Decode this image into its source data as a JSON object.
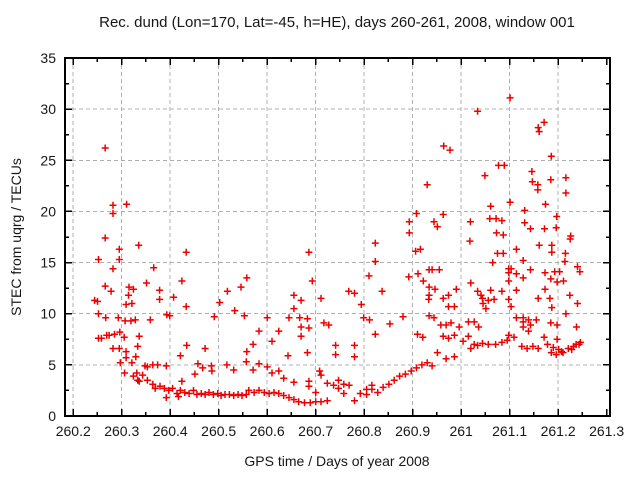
{
  "chart_data": {
    "type": "scatter",
    "title": "Rec. dund (Lon=170, Lat=-45, h=HE), days 260-261, 2008, window 001",
    "xlabel": "GPS time / Days of year 2008",
    "ylabel": "STEC from uqrg / TECUs",
    "xlim": [
      260.183,
      261.307
    ],
    "ylim": [
      0,
      35
    ],
    "x_tick_labels": [
      "260.2",
      "260.3",
      "260.4",
      "260.5",
      "260.6",
      "260.7",
      "260.8",
      "260.9",
      "261",
      "261.1",
      "261.2",
      "261.3"
    ],
    "x_tick_values": [
      260.2,
      260.3,
      260.4,
      260.5,
      260.6,
      260.7,
      260.8,
      260.9,
      261.0,
      261.1,
      261.2,
      261.3
    ],
    "y_tick_labels": [
      "0",
      "5",
      "10",
      "15",
      "20",
      "25",
      "30",
      "35"
    ],
    "y_tick_values": [
      0,
      5,
      10,
      15,
      20,
      25,
      30,
      35
    ],
    "x_minor_step": 0.05,
    "y_minor_step": 2.5,
    "grid": "on",
    "legend": "none",
    "marker": "plus",
    "colors": {
      "marker": "#ee0000",
      "grid": "#b0b0b0",
      "axis": "#000000",
      "text": "#161616",
      "background": "#ffffff"
    },
    "points": [
      [
        260.266,
        26.2
      ],
      [
        260.282,
        20.6
      ],
      [
        260.31,
        20.7
      ],
      [
        260.282,
        19.8
      ],
      [
        260.266,
        17.4
      ],
      [
        260.295,
        16.3
      ],
      [
        260.335,
        16.7
      ],
      [
        260.295,
        15.3
      ],
      [
        260.252,
        15.3
      ],
      [
        260.282,
        14.4
      ],
      [
        260.266,
        12.7
      ],
      [
        260.278,
        12.2
      ],
      [
        260.324,
        12.4
      ],
      [
        260.314,
        11.8
      ],
      [
        260.321,
        11.0
      ],
      [
        260.309,
        10.9
      ],
      [
        260.244,
        11.3
      ],
      [
        260.25,
        11.2
      ],
      [
        260.252,
        10.0
      ],
      [
        260.267,
        9.6
      ],
      [
        260.293,
        9.6
      ],
      [
        260.307,
        9.3
      ],
      [
        260.319,
        9.3
      ],
      [
        260.328,
        9.4
      ],
      [
        260.252,
        7.6
      ],
      [
        260.258,
        7.6
      ],
      [
        260.269,
        7.9
      ],
      [
        260.274,
        7.9
      ],
      [
        260.285,
        8.0
      ],
      [
        260.296,
        8.2
      ],
      [
        260.305,
        7.7
      ],
      [
        260.282,
        6.6
      ],
      [
        260.295,
        6.6
      ],
      [
        260.309,
        6.3
      ],
      [
        260.309,
        5.7
      ],
      [
        260.297,
        5.2
      ],
      [
        260.321,
        5.2
      ],
      [
        260.329,
        5.8
      ],
      [
        260.315,
        12.6
      ],
      [
        260.336,
        7.8
      ],
      [
        260.333,
        6.8
      ],
      [
        260.336,
        3.4
      ],
      [
        260.331,
        4.2
      ],
      [
        260.324,
        3.9
      ],
      [
        260.333,
        3.5
      ],
      [
        260.306,
        4.2
      ],
      [
        260.366,
        14.5
      ],
      [
        260.351,
        13.0
      ],
      [
        260.378,
        12.3
      ],
      [
        260.378,
        11.4
      ],
      [
        260.433,
        16.0
      ],
      [
        260.424,
        13.2
      ],
      [
        260.407,
        11.6
      ],
      [
        260.433,
        10.7
      ],
      [
        260.393,
        9.9
      ],
      [
        260.399,
        9.8
      ],
      [
        260.359,
        9.4
      ],
      [
        260.348,
        4.9
      ],
      [
        260.353,
        4.8
      ],
      [
        260.343,
        4.0
      ],
      [
        260.353,
        3.5
      ],
      [
        260.364,
        5.0
      ],
      [
        260.374,
        5.0
      ],
      [
        260.392,
        4.9
      ],
      [
        260.364,
        3.1
      ],
      [
        260.369,
        2.7
      ],
      [
        260.379,
        2.9
      ],
      [
        260.388,
        2.7
      ],
      [
        260.397,
        2.5
      ],
      [
        260.405,
        2.7
      ],
      [
        260.414,
        2.2
      ],
      [
        260.421,
        2.5
      ],
      [
        260.43,
        2.3
      ],
      [
        260.439,
        2.2
      ],
      [
        260.448,
        2.5
      ],
      [
        260.455,
        2.1
      ],
      [
        260.464,
        2.2
      ],
      [
        260.472,
        2.1
      ],
      [
        260.48,
        2.3
      ],
      [
        260.489,
        2.1
      ],
      [
        260.498,
        2.2
      ],
      [
        260.505,
        2.0
      ],
      [
        260.513,
        2.1
      ],
      [
        260.522,
        2.1
      ],
      [
        260.531,
        2.0
      ],
      [
        260.54,
        2.1
      ],
      [
        260.548,
        2.0
      ],
      [
        260.557,
        2.1
      ],
      [
        260.434,
        6.9
      ],
      [
        260.472,
        6.6
      ],
      [
        260.421,
        5.9
      ],
      [
        260.457,
        5.1
      ],
      [
        260.467,
        4.7
      ],
      [
        260.485,
        4.9
      ],
      [
        260.517,
        5.0
      ],
      [
        260.486,
        4.4
      ],
      [
        260.531,
        4.5
      ],
      [
        260.557,
        5.3
      ],
      [
        260.451,
        4.1
      ],
      [
        260.491,
        9.7
      ],
      [
        260.502,
        11.1
      ],
      [
        260.518,
        12.2
      ],
      [
        260.533,
        10.3
      ],
      [
        260.546,
        12.6
      ],
      [
        260.558,
        13.5
      ],
      [
        260.553,
        9.8
      ],
      [
        260.424,
        3.4
      ],
      [
        260.417,
        1.9
      ],
      [
        260.392,
        1.8
      ],
      [
        260.686,
        16.0
      ],
      [
        260.823,
        16.9
      ],
      [
        260.823,
        15.1
      ],
      [
        260.906,
        16.1
      ],
      [
        260.916,
        16.3
      ],
      [
        260.693,
        13.2
      ],
      [
        260.81,
        13.7
      ],
      [
        260.892,
        13.6
      ],
      [
        260.911,
        13.9
      ],
      [
        260.922,
        13.2
      ],
      [
        260.768,
        12.2
      ],
      [
        260.78,
        12.0
      ],
      [
        260.837,
        12.2
      ],
      [
        260.655,
        11.8
      ],
      [
        260.67,
        11.3
      ],
      [
        260.711,
        11.5
      ],
      [
        260.655,
        10.5
      ],
      [
        260.794,
        10.9
      ],
      [
        260.6,
        9.6
      ],
      [
        260.645,
        9.6
      ],
      [
        260.667,
        9.6
      ],
      [
        260.683,
        9.5
      ],
      [
        260.717,
        9.1
      ],
      [
        260.799,
        9.6
      ],
      [
        260.811,
        9.4
      ],
      [
        260.853,
        9.0
      ],
      [
        260.88,
        9.7
      ],
      [
        260.583,
        8.3
      ],
      [
        260.624,
        8.3
      ],
      [
        260.67,
        8.7
      ],
      [
        260.686,
        8.6
      ],
      [
        260.727,
        8.9
      ],
      [
        260.823,
        8.0
      ],
      [
        260.91,
        8.0
      ],
      [
        260.921,
        7.7
      ],
      [
        260.571,
        7.0
      ],
      [
        260.61,
        7.3
      ],
      [
        260.67,
        7.8
      ],
      [
        260.683,
        6.2
      ],
      [
        260.741,
        6.9
      ],
      [
        260.741,
        6.0
      ],
      [
        260.78,
        6.9
      ],
      [
        260.78,
        5.8
      ],
      [
        260.643,
        5.9
      ],
      [
        260.583,
        5.1
      ],
      [
        260.571,
        4.5
      ],
      [
        260.6,
        4.8
      ],
      [
        260.558,
        6.3
      ],
      [
        260.61,
        4.2
      ],
      [
        260.624,
        4.4
      ],
      [
        260.634,
        3.7
      ],
      [
        260.655,
        3.3
      ],
      [
        260.686,
        3.4
      ],
      [
        260.686,
        2.9
      ],
      [
        260.7,
        2.3
      ],
      [
        260.708,
        4.4
      ],
      [
        260.711,
        4.0
      ],
      [
        260.724,
        3.2
      ],
      [
        260.737,
        3.0
      ],
      [
        260.747,
        3.5
      ],
      [
        260.747,
        2.7
      ],
      [
        260.758,
        3.1
      ],
      [
        260.758,
        2.2
      ],
      [
        260.769,
        3.0
      ],
      [
        260.78,
        1.5
      ],
      [
        260.792,
        2.2
      ],
      [
        260.805,
        2.6
      ],
      [
        260.805,
        2.1
      ],
      [
        260.816,
        2.6
      ],
      [
        260.816,
        3.0
      ],
      [
        260.828,
        2.3
      ],
      [
        260.839,
        2.8
      ],
      [
        260.851,
        3.1
      ],
      [
        260.862,
        3.5
      ],
      [
        260.873,
        3.9
      ],
      [
        260.885,
        4.1
      ],
      [
        260.897,
        4.4
      ],
      [
        260.908,
        4.7
      ],
      [
        260.919,
        5.0
      ],
      [
        260.93,
        5.2
      ],
      [
        260.562,
        2.5
      ],
      [
        260.573,
        2.3
      ],
      [
        260.583,
        2.5
      ],
      [
        260.594,
        2.3
      ],
      [
        260.604,
        2.2
      ],
      [
        260.614,
        2.3
      ],
      [
        260.624,
        2.2
      ],
      [
        260.634,
        2.0
      ],
      [
        260.645,
        1.8
      ],
      [
        260.655,
        1.6
      ],
      [
        260.665,
        1.4
      ],
      [
        260.677,
        1.3
      ],
      [
        260.689,
        1.3
      ],
      [
        260.7,
        1.4
      ],
      [
        260.711,
        1.4
      ],
      [
        260.724,
        1.5
      ],
      [
        260.908,
        19.8
      ],
      [
        260.893,
        19.0
      ],
      [
        260.893,
        17.9
      ],
      [
        260.93,
        22.6
      ],
      [
        261.101,
        31.1
      ],
      [
        261.034,
        29.8
      ],
      [
        260.964,
        26.4
      ],
      [
        260.977,
        26.0
      ],
      [
        260.963,
        19.7
      ],
      [
        260.944,
        19.0
      ],
      [
        260.951,
        18.5
      ],
      [
        261.019,
        19.0
      ],
      [
        261.018,
        17.1
      ],
      [
        260.934,
        14.3
      ],
      [
        260.94,
        14.3
      ],
      [
        260.955,
        14.3
      ],
      [
        260.934,
        12.6
      ],
      [
        260.946,
        12.4
      ],
      [
        260.934,
        11.8
      ],
      [
        260.933,
        11.4
      ],
      [
        260.963,
        11.5
      ],
      [
        260.974,
        11.8
      ],
      [
        260.974,
        10.7
      ],
      [
        260.986,
        10.7
      ],
      [
        260.99,
        12.4
      ],
      [
        261.02,
        13.0
      ],
      [
        261.034,
        12.2
      ],
      [
        261.041,
        11.8
      ],
      [
        261.044,
        11.5
      ],
      [
        261.045,
        11.0
      ],
      [
        261.051,
        10.5
      ],
      [
        260.934,
        9.8
      ],
      [
        260.944,
        9.6
      ],
      [
        260.958,
        8.9
      ],
      [
        260.969,
        8.9
      ],
      [
        260.979,
        9.1
      ],
      [
        260.996,
        8.7
      ],
      [
        261.015,
        9.2
      ],
      [
        261.027,
        9.2
      ],
      [
        261.036,
        8.7
      ],
      [
        260.963,
        7.8
      ],
      [
        260.974,
        7.6
      ],
      [
        260.986,
        7.9
      ],
      [
        261.004,
        7.3
      ],
      [
        261.015,
        7.8
      ],
      [
        261.027,
        7.0
      ],
      [
        261.02,
        6.6
      ],
      [
        261.034,
        6.9
      ],
      [
        261.044,
        7.1
      ],
      [
        260.951,
        6.2
      ],
      [
        260.969,
        5.6
      ],
      [
        260.986,
        5.8
      ],
      [
        260.94,
        4.9
      ],
      [
        261.171,
        28.7
      ],
      [
        261.159,
        28.2
      ],
      [
        261.161,
        27.8
      ],
      [
        261.186,
        25.4
      ],
      [
        261.077,
        24.5
      ],
      [
        261.089,
        24.5
      ],
      [
        261.049,
        23.5
      ],
      [
        261.146,
        23.9
      ],
      [
        261.147,
        22.9
      ],
      [
        261.158,
        22.6
      ],
      [
        261.185,
        23.1
      ],
      [
        261.216,
        23.3
      ],
      [
        261.158,
        22.1
      ],
      [
        261.216,
        21.8
      ],
      [
        261.101,
        20.9
      ],
      [
        261.061,
        20.5
      ],
      [
        261.174,
        20.7
      ],
      [
        261.131,
        20.1
      ],
      [
        261.059,
        19.3
      ],
      [
        261.072,
        19.3
      ],
      [
        261.084,
        19.1
      ],
      [
        261.197,
        19.5
      ],
      [
        261.196,
        18.4
      ],
      [
        261.131,
        18.9
      ],
      [
        261.143,
        18.3
      ],
      [
        261.172,
        18.3
      ],
      [
        261.073,
        17.9
      ],
      [
        261.087,
        17.7
      ],
      [
        261.226,
        17.6
      ],
      [
        261.225,
        17.3
      ],
      [
        261.114,
        16.3
      ],
      [
        261.161,
        16.7
      ],
      [
        261.187,
        16.7
      ],
      [
        261.187,
        16.0
      ],
      [
        261.215,
        15.9
      ],
      [
        261.075,
        15.9
      ],
      [
        261.087,
        15.9
      ],
      [
        261.128,
        15.2
      ],
      [
        261.065,
        15.0
      ],
      [
        261.098,
        14.4
      ],
      [
        261.103,
        14.4
      ],
      [
        261.098,
        14.0
      ],
      [
        261.114,
        13.9
      ],
      [
        261.143,
        14.3
      ],
      [
        261.173,
        14.0
      ],
      [
        261.193,
        14.1
      ],
      [
        261.203,
        14.1
      ],
      [
        261.214,
        15.1
      ],
      [
        261.24,
        14.6
      ],
      [
        261.245,
        14.1
      ],
      [
        261.056,
        11.3
      ],
      [
        261.068,
        11.4
      ],
      [
        261.061,
        12.3
      ],
      [
        261.084,
        12.2
      ],
      [
        261.098,
        13.2
      ],
      [
        261.098,
        11.4
      ],
      [
        261.103,
        10.7
      ],
      [
        261.114,
        12.3
      ],
      [
        261.128,
        13.5
      ],
      [
        261.159,
        11.5
      ],
      [
        261.183,
        11.5
      ],
      [
        261.24,
        11.0
      ],
      [
        261.216,
        10.0
      ],
      [
        261.185,
        13.4
      ],
      [
        261.198,
        13.1
      ],
      [
        261.211,
        13.2
      ],
      [
        261.173,
        12.4
      ],
      [
        261.224,
        11.8
      ],
      [
        261.187,
        10.6
      ],
      [
        261.185,
        9.1
      ],
      [
        261.198,
        8.9
      ],
      [
        261.238,
        8.7
      ],
      [
        261.198,
        7.5
      ],
      [
        261.114,
        9.6
      ],
      [
        261.128,
        9.6
      ],
      [
        261.128,
        9.2
      ],
      [
        261.139,
        9.4
      ],
      [
        261.155,
        9.4
      ],
      [
        261.128,
        8.7
      ],
      [
        261.139,
        8.3
      ],
      [
        261.143,
        8.9
      ],
      [
        261.056,
        7.0
      ],
      [
        261.071,
        7.0
      ],
      [
        261.084,
        7.2
      ],
      [
        261.095,
        7.4
      ],
      [
        261.098,
        7.9
      ],
      [
        261.109,
        7.7
      ],
      [
        261.125,
        6.8
      ],
      [
        261.136,
        6.6
      ],
      [
        261.148,
        6.8
      ],
      [
        261.159,
        6.6
      ],
      [
        261.171,
        7.7
      ],
      [
        261.178,
        7.0
      ],
      [
        261.19,
        6.7
      ],
      [
        261.201,
        6.5
      ],
      [
        261.21,
        6.2
      ],
      [
        261.221,
        6.6
      ],
      [
        261.232,
        6.8
      ],
      [
        261.243,
        7.0
      ],
      [
        261.186,
        6.2
      ],
      [
        261.196,
        6.0
      ],
      [
        261.207,
        6.3
      ],
      [
        261.228,
        6.5
      ],
      [
        261.237,
        7.0
      ],
      [
        261.246,
        7.2
      ]
    ]
  }
}
